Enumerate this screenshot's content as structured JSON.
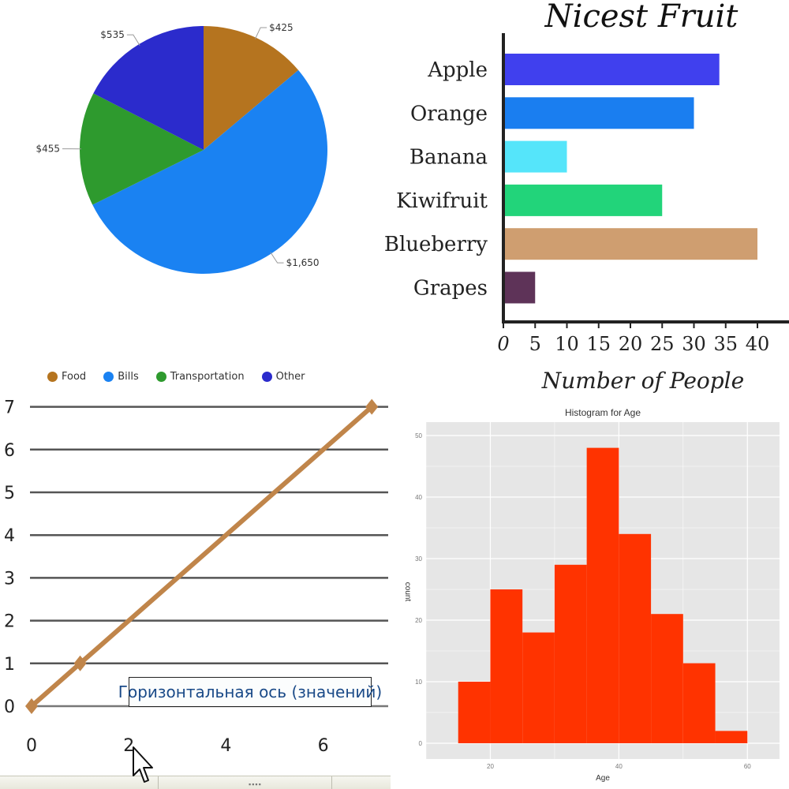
{
  "chart_data": [
    {
      "type": "pie",
      "title": "",
      "categories": [
        "Food",
        "Bills",
        "Transportation",
        "Other"
      ],
      "values": [
        425,
        1650,
        455,
        535
      ],
      "labels": [
        "$425",
        "$1,650",
        "$455",
        "$535"
      ],
      "colors": [
        "#b5741f",
        "#1a82f2",
        "#2e9a2e",
        "#2b2bcc"
      ],
      "legend": "bottom"
    },
    {
      "type": "bar",
      "orientation": "horizontal",
      "title": "Nicest Fruit",
      "xlabel": "Number of People",
      "ylabel": "",
      "categories": [
        "Apple",
        "Orange",
        "Banana",
        "Kiwifruit",
        "Blueberry",
        "Grapes"
      ],
      "values": [
        34,
        30,
        10,
        25,
        40,
        5
      ],
      "colors": [
        "#4040ee",
        "#1a7ef0",
        "#55e5fa",
        "#22d47a",
        "#cf9e70",
        "#5e3358"
      ],
      "xlim": [
        0,
        40
      ],
      "xticks": [
        0,
        5,
        10,
        15,
        20,
        25,
        30,
        35,
        40
      ]
    },
    {
      "type": "line",
      "title": "",
      "xlabel": "Горизонтальная ось (значений)",
      "ylabel": "",
      "x": [
        0,
        1,
        7
      ],
      "y": [
        0,
        1,
        7
      ],
      "color": "#c0854a",
      "xticks": [
        0,
        2,
        4,
        6
      ],
      "yticks": [
        0,
        1,
        2,
        3,
        4,
        5,
        6,
        7
      ],
      "grid": true
    },
    {
      "type": "bar",
      "subtype": "histogram",
      "title": "Histogram for Age",
      "xlabel": "Age",
      "ylabel": "count",
      "bins": [
        [
          15,
          20
        ],
        [
          20,
          25
        ],
        [
          25,
          30
        ],
        [
          30,
          35
        ],
        [
          35,
          40
        ],
        [
          40,
          45
        ],
        [
          45,
          50
        ],
        [
          50,
          55
        ],
        [
          55,
          60
        ]
      ],
      "values": [
        10,
        25,
        18,
        29,
        48,
        34,
        21,
        13,
        2
      ],
      "color": "#ff3300",
      "xlim": [
        10,
        65
      ],
      "ylim": [
        0,
        50
      ],
      "xticks": [
        20,
        40,
        60
      ],
      "yticks": [
        0,
        10,
        20,
        30,
        40,
        50
      ],
      "grid": true
    }
  ]
}
